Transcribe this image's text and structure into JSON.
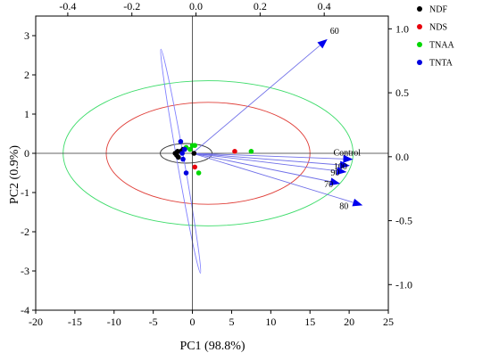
{
  "chart_data": {
    "type": "scatter",
    "subtype": "PCA biplot",
    "title": "",
    "xlabel": "PC1 (98.8%)",
    "ylabel": "PC2 (0.9%)",
    "xlim": [
      -20,
      25
    ],
    "ylim": [
      -4,
      3.5
    ],
    "x_ticks": [
      -20,
      -15,
      -10,
      -5,
      0,
      5,
      10,
      15,
      20,
      25
    ],
    "y_ticks": [
      -4,
      -3,
      -2,
      -1,
      0,
      1,
      2,
      3
    ],
    "top_axis": {
      "ticks": [
        -0.4,
        -0.2,
        0.0,
        0.2,
        0.4
      ],
      "lim": [
        -0.5,
        0.6
      ]
    },
    "right_axis": {
      "ticks": [
        1.0,
        0.5,
        0.0,
        -0.5,
        -1.0
      ],
      "lim": [
        -1.2,
        1.1
      ]
    },
    "grid": false,
    "legend_position": "top-right",
    "series": [
      {
        "name": "NDF",
        "color": "#000000",
        "points": [
          [
            -2.2,
            0.0
          ],
          [
            -1.8,
            -0.1
          ],
          [
            -1.5,
            0.05
          ],
          [
            -1.2,
            0.1
          ],
          [
            -1.9,
            0.05
          ],
          [
            -2.0,
            -0.05
          ],
          [
            0.2,
            0.0
          ]
        ]
      },
      {
        "name": "NDS",
        "color": "#e8000b",
        "points": [
          [
            5.4,
            0.05
          ],
          [
            0.3,
            -0.35
          ]
        ]
      },
      {
        "name": "TNAA",
        "color": "#00d700",
        "points": [
          [
            7.5,
            0.05
          ],
          [
            0.8,
            -0.5
          ],
          [
            -0.8,
            0.15
          ],
          [
            0.3,
            0.2
          ],
          [
            -0.3,
            0.1
          ],
          [
            0.0,
            0.2
          ]
        ]
      },
      {
        "name": "TNTA",
        "color": "#0000e0",
        "points": [
          [
            -1.5,
            0.3
          ],
          [
            -1.0,
            0.1
          ],
          [
            -1.2,
            -0.15
          ],
          [
            -0.8,
            -0.5
          ],
          [
            -1.3,
            0.0
          ]
        ]
      }
    ],
    "loadings": [
      {
        "label": "60",
        "x": 0.41,
        "y": 0.92
      },
      {
        "label": "Control",
        "x": 0.49,
        "y": -0.02
      },
      {
        "label": "100",
        "x": 0.48,
        "y": -0.07
      },
      {
        "label": "90",
        "x": 0.47,
        "y": -0.12
      },
      {
        "label": "70",
        "x": 0.45,
        "y": -0.21
      },
      {
        "label": "80",
        "x": 0.52,
        "y": -0.38
      }
    ],
    "ellipses": [
      {
        "cx": 2.0,
        "cy": 0.0,
        "rx": 18.5,
        "ry": 1.85,
        "angle": 0,
        "color": "#3ddc6a"
      },
      {
        "cx": 2.0,
        "cy": 0.0,
        "rx": 13.0,
        "ry": 1.3,
        "angle": 0,
        "color": "#e0403a"
      },
      {
        "cx": -0.8,
        "cy": 0.0,
        "rx": 3.3,
        "ry": 0.25,
        "angle": 0,
        "color": "#333333"
      },
      {
        "cx": -1.5,
        "cy": -0.2,
        "rx": 0.45,
        "ry": 2.9,
        "angle": -10,
        "color": "#8080ff"
      }
    ],
    "vector_color": "#0000ee"
  }
}
